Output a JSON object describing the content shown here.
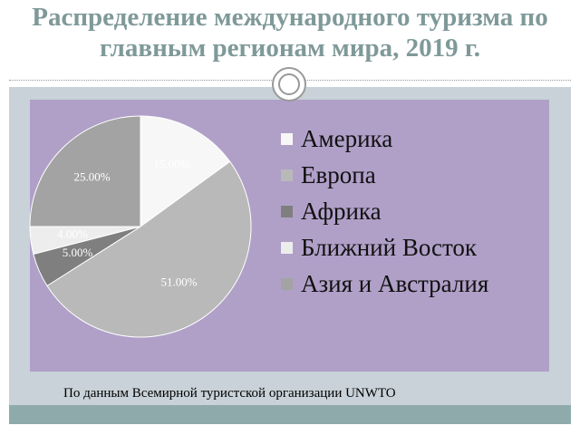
{
  "chart_data": {
    "type": "pie",
    "title": "Распределение международного туризма по главным регионам мира, 2019 г.",
    "categories": [
      "Америка",
      "Европа",
      "Африка",
      "Ближний Восток",
      "Азия и Австралия"
    ],
    "values": [
      15,
      51,
      5,
      4,
      25
    ],
    "value_labels": [
      "15.00%",
      "51.00%",
      "5.00%",
      "4.00%",
      "25.00%"
    ],
    "colors": [
      "#f7f7f7",
      "#b9b9b9",
      "#7f7f7f",
      "#ededed",
      "#a3a3a3"
    ],
    "source": "По данным Всемирной туристской организации UNWTO"
  }
}
